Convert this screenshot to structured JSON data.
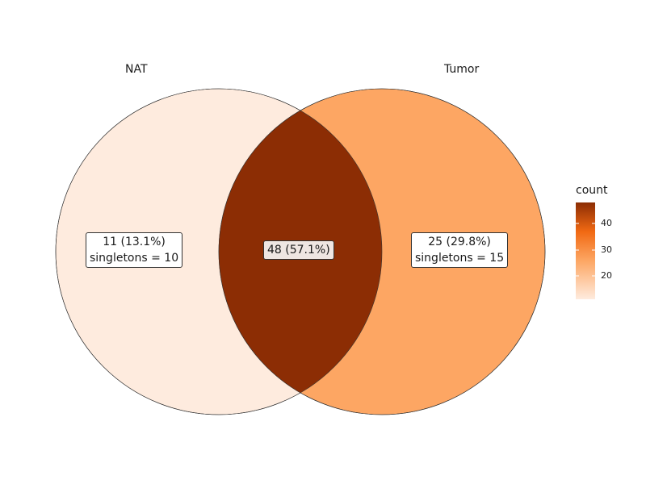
{
  "chart_data": {
    "type": "venn",
    "sets": [
      {
        "name": "NAT",
        "fill": "#FEEBDE"
      },
      {
        "name": "Tumor",
        "fill": "#FDA663"
      }
    ],
    "regions": [
      {
        "id": "nat_only",
        "sets": [
          "NAT"
        ],
        "count": 11,
        "percent": "13.1%",
        "label": "11 (13.1%)",
        "singletons_label": "singletons = 10",
        "fill": "#FEEBDE"
      },
      {
        "id": "intersection",
        "sets": [
          "NAT",
          "Tumor"
        ],
        "count": 48,
        "percent": "57.1%",
        "label": "48 (57.1%)",
        "fill": "#8C2D04"
      },
      {
        "id": "tumor_only",
        "sets": [
          "Tumor"
        ],
        "count": 25,
        "percent": "29.8%",
        "label": "25 (29.8%)",
        "singletons_label": "singletons = 15",
        "fill": "#FDA663"
      }
    ],
    "legend": {
      "title": "count",
      "ticks": [
        "20",
        "30",
        "40"
      ],
      "colors": [
        "#FEEBDE",
        "#FDA663",
        "#F16913",
        "#8C2D04"
      ],
      "placement": "right"
    }
  }
}
